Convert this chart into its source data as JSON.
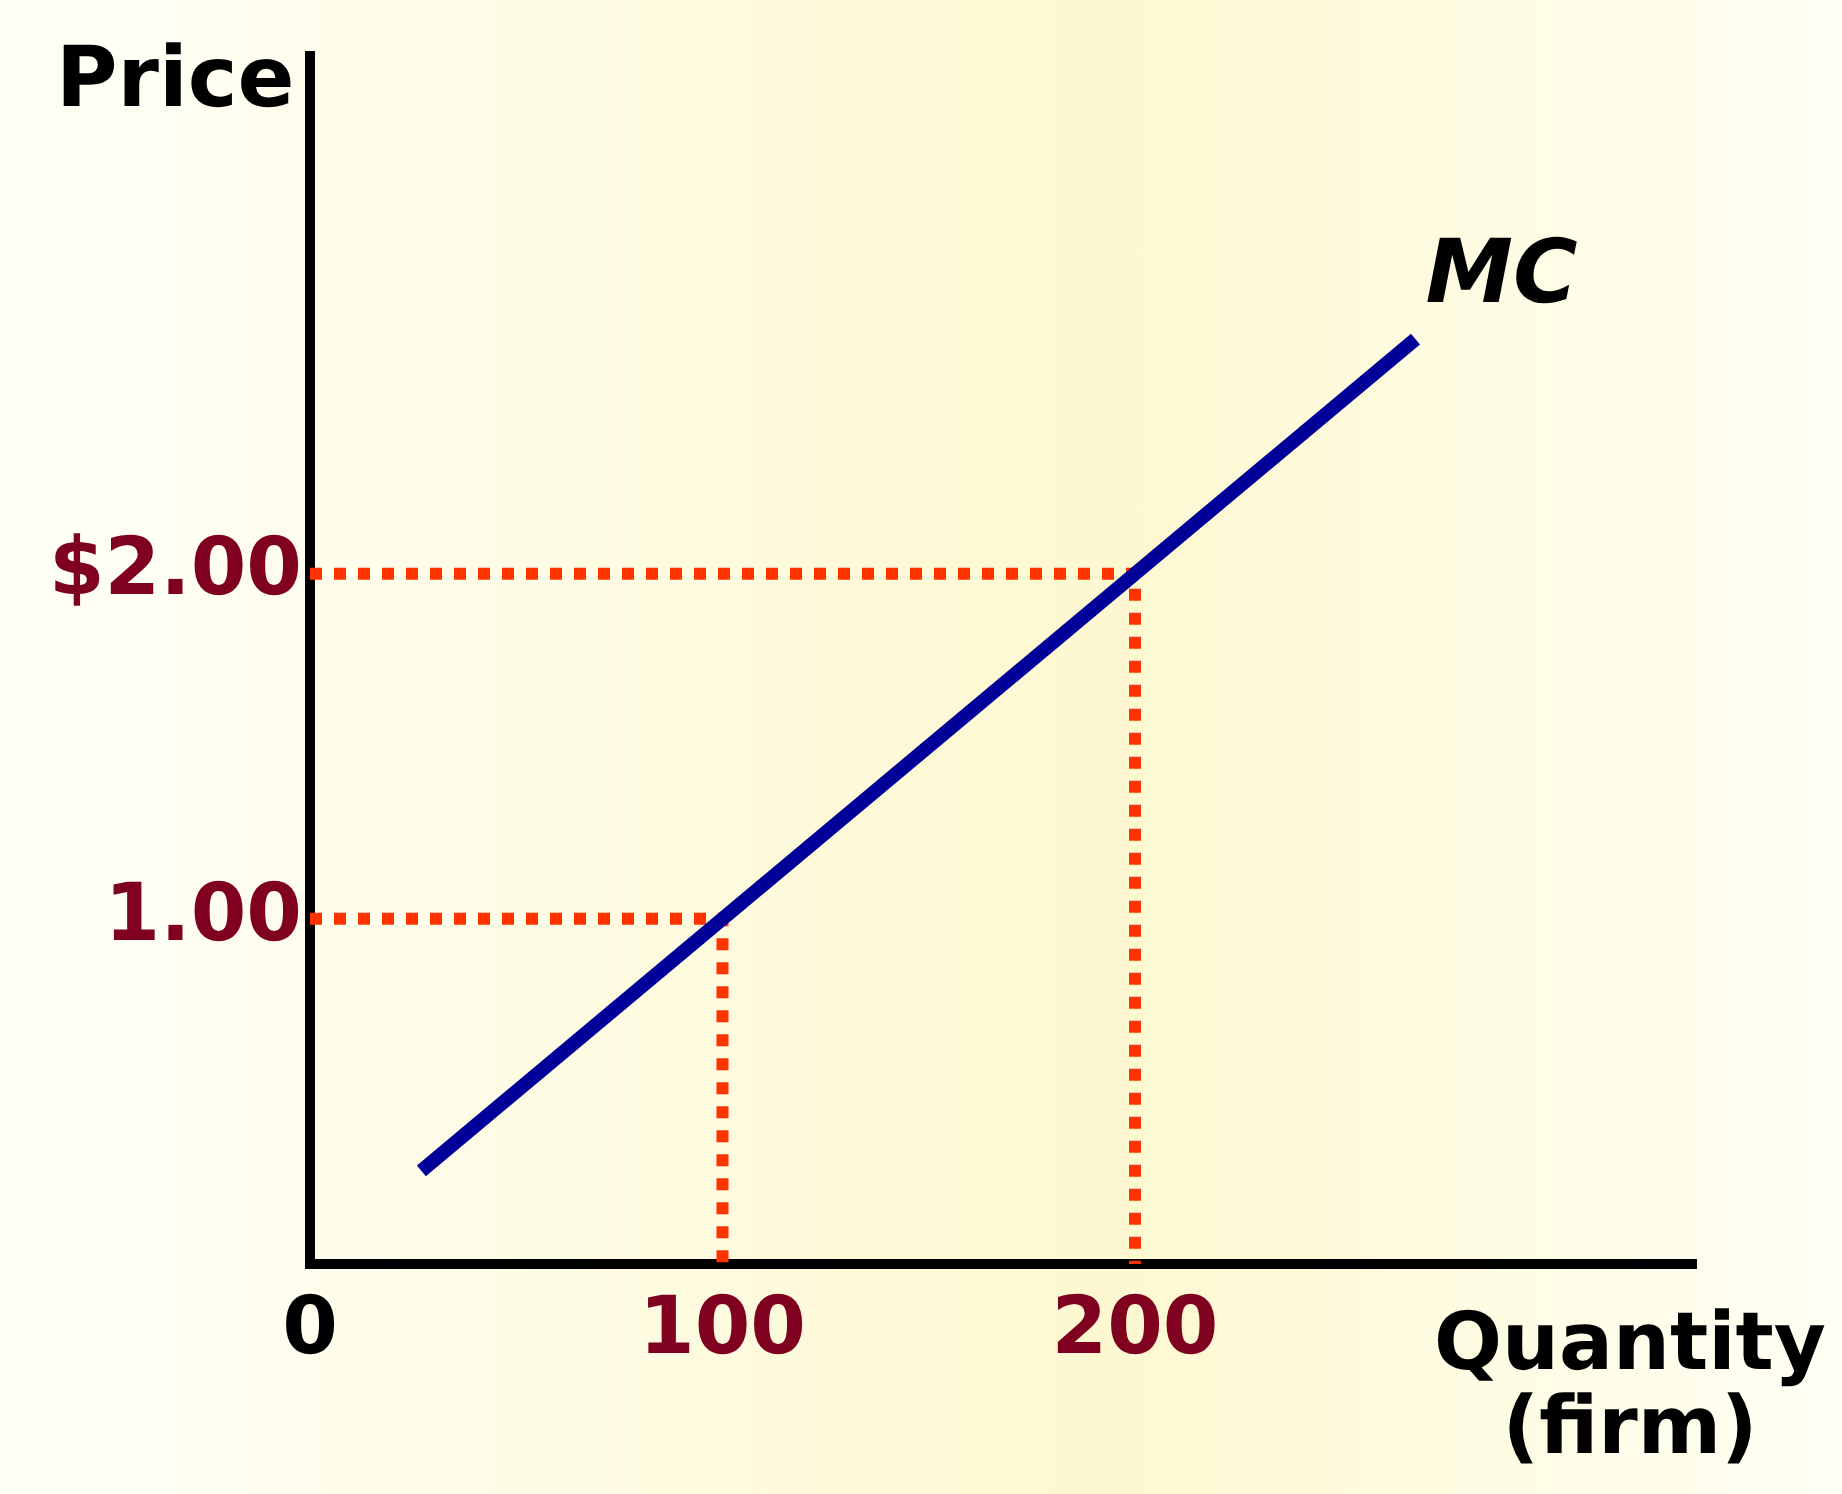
{
  "chart_data": {
    "type": "line",
    "ylabel": "Price",
    "xlabel": "Quantity\n(firm)",
    "xlim": [
      0,
      336
    ],
    "ylim": [
      0,
      3.5
    ],
    "xticks": [
      0,
      100,
      200
    ],
    "yticks": [
      {
        "value": 1,
        "label": "1.00"
      },
      {
        "value": 2,
        "label": "$2.00"
      }
    ],
    "grid": false,
    "legend": false,
    "marker": "none",
    "series": [
      {
        "x": [
          27,
          268
        ],
        "values": [
          0.27,
          2.68
        ],
        "color": "#000099",
        "line_style": "solid"
      },
      {
        "x": [
          0,
          200,
          200
        ],
        "values": [
          2,
          2,
          0
        ],
        "color": "#ff3300",
        "line_style": "dotted"
      },
      {
        "x": [
          0,
          100,
          100
        ],
        "values": [
          1,
          1,
          0
        ],
        "color": "#ff3300",
        "line_style": "dotted"
      }
    ],
    "annotations": [
      {
        "text": "MC",
        "x": 268,
        "y": 2.68
      }
    ]
  }
}
